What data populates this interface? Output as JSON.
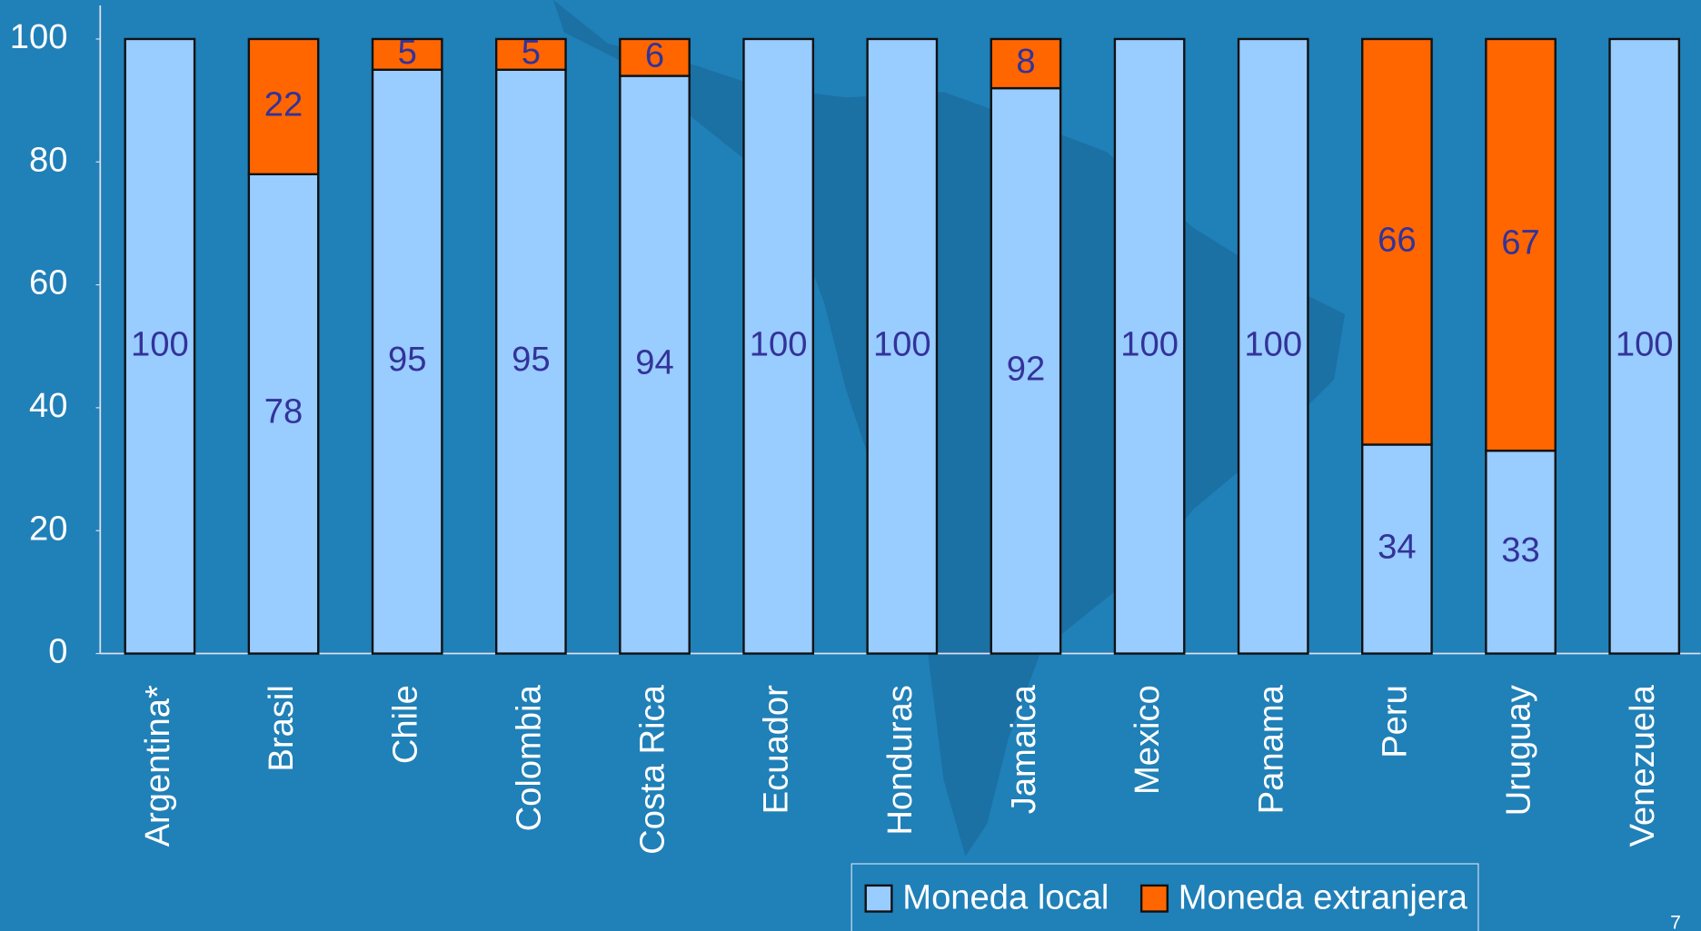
{
  "chart_data": {
    "type": "stacked_bar",
    "categories": [
      "Argentina*",
      "Brasil",
      "Chile",
      "Colombia",
      "Costa Rica",
      "Ecuador",
      "Honduras",
      "Jamaica",
      "Mexico",
      "Panama",
      "Peru",
      "Uruguay",
      "Venezuela"
    ],
    "series": [
      {
        "name": "Moneda local",
        "color": "#99ccff",
        "values": [
          100,
          78,
          95,
          95,
          94,
          100,
          100,
          92,
          100,
          100,
          34,
          33,
          100
        ]
      },
      {
        "name": "Moneda extranjera",
        "color": "#ff6600",
        "values": [
          null,
          22,
          5,
          5,
          6,
          null,
          null,
          8,
          null,
          null,
          66,
          67,
          null
        ]
      }
    ],
    "ylim": [
      0,
      100
    ],
    "yticks": [
      0,
      20,
      40,
      60,
      80,
      100
    ],
    "page_number": "7"
  }
}
